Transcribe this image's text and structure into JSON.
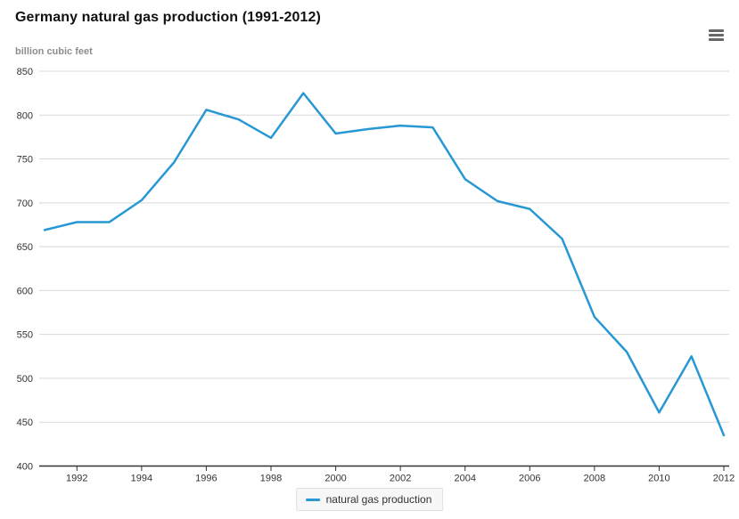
{
  "chart": {
    "title": "Germany natural gas production (1991-2012)",
    "units_label": "billion cubic feet",
    "legend_label": "natural gas production",
    "menu_icon": "hamburger-icon",
    "colors": {
      "line": "#2798d4",
      "grid": "#d8d8d8",
      "axis": "#333333",
      "axis_labels": "#333333",
      "title": "#111111",
      "units": "#8d8d8d",
      "legend_bg": "#f7f7f7",
      "legend_border": "#e1e1e1",
      "menu_icon": "#666666"
    }
  },
  "chart_data": {
    "type": "line",
    "title": "Germany natural gas production (1991-2012)",
    "xlabel": "",
    "ylabel": "billion cubic feet",
    "x": [
      1991,
      1992,
      1993,
      1994,
      1995,
      1996,
      1997,
      1998,
      1999,
      2000,
      2001,
      2002,
      2003,
      2004,
      2005,
      2006,
      2007,
      2008,
      2009,
      2010,
      2011,
      2012
    ],
    "series": [
      {
        "name": "natural gas production",
        "values": [
          669,
          678,
          678,
          703,
          746,
          806,
          795,
          774,
          825,
          779,
          784,
          788,
          786,
          727,
          702,
          693,
          659,
          570,
          530,
          461,
          525,
          435
        ]
      }
    ],
    "ylim": [
      400,
      850
    ],
    "ytick_step": 50,
    "yticks": [
      400,
      450,
      500,
      550,
      600,
      650,
      700,
      750,
      800,
      850
    ],
    "xticks_labeled": [
      1992,
      1994,
      1996,
      1998,
      2000,
      2002,
      2004,
      2006,
      2008,
      2010,
      2012
    ],
    "grid": "horizontal",
    "legend_position": "bottom-center",
    "markers": false
  }
}
